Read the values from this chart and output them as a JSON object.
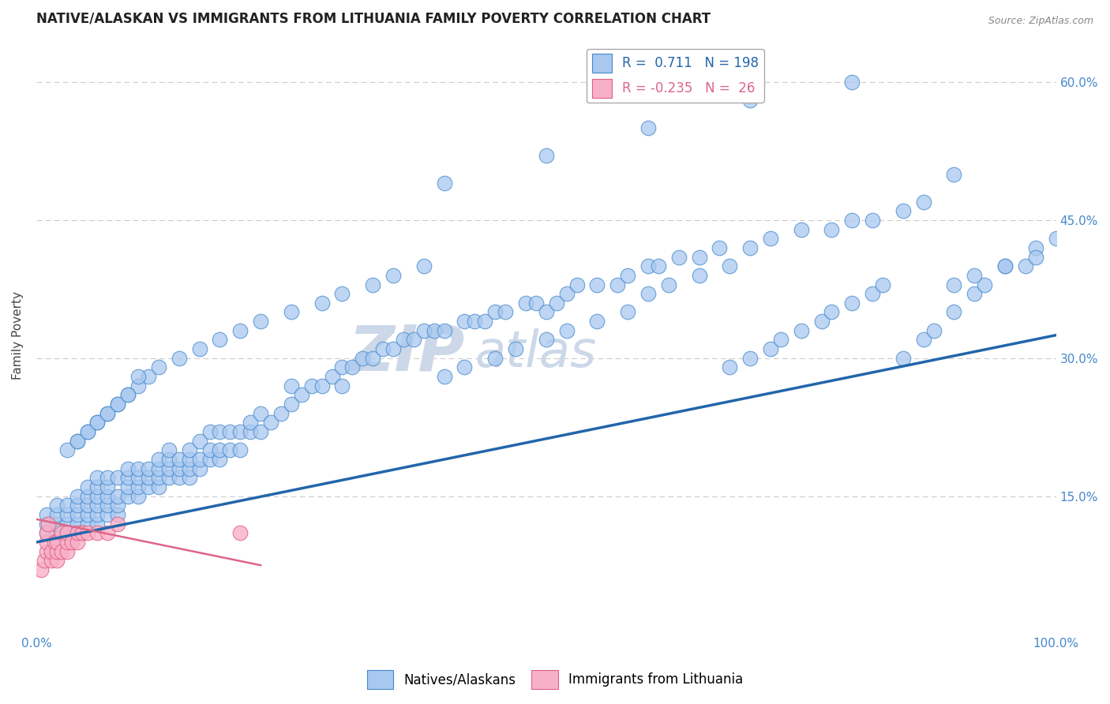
{
  "title": "NATIVE/ALASKAN VS IMMIGRANTS FROM LITHUANIA FAMILY POVERTY CORRELATION CHART",
  "source": "Source: ZipAtlas.com",
  "ylabel": "Family Poverty",
  "x_min": 0.0,
  "x_max": 1.0,
  "y_min": 0.0,
  "y_max": 0.65,
  "yticks": [
    0.0,
    0.15,
    0.3,
    0.45,
    0.6
  ],
  "ytick_labels": [
    "",
    "15.0%",
    "30.0%",
    "45.0%",
    "60.0%"
  ],
  "xtick_labels": [
    "0.0%",
    "100.0%"
  ],
  "blue_R": 0.711,
  "blue_N": 198,
  "pink_R": -0.235,
  "pink_N": 26,
  "blue_color": "#a8c8f0",
  "blue_edge_color": "#4488cc",
  "blue_line_color": "#2266aa",
  "pink_color": "#f8b0c8",
  "pink_edge_color": "#e06080",
  "pink_line_color": "#dd6688",
  "background_color": "#ffffff",
  "watermark_color": "#ccd8e8",
  "title_color": "#222222",
  "axis_label_color": "#444444",
  "tick_label_color": "#4488cc",
  "grid_color": "#cccccc",
  "legend_label1": "Natives/Alaskans",
  "legend_label2": "Immigrants from Lithuania",
  "blue_line_x": [
    0.0,
    1.0
  ],
  "blue_line_y": [
    0.1,
    0.325
  ],
  "pink_line_x": [
    0.0,
    0.22
  ],
  "pink_line_y": [
    0.125,
    0.075
  ],
  "blue_scatter_x": [
    0.01,
    0.01,
    0.01,
    0.02,
    0.02,
    0.02,
    0.02,
    0.02,
    0.03,
    0.03,
    0.03,
    0.03,
    0.03,
    0.04,
    0.04,
    0.04,
    0.04,
    0.04,
    0.05,
    0.05,
    0.05,
    0.05,
    0.05,
    0.06,
    0.06,
    0.06,
    0.06,
    0.06,
    0.06,
    0.07,
    0.07,
    0.07,
    0.07,
    0.07,
    0.08,
    0.08,
    0.08,
    0.08,
    0.09,
    0.09,
    0.09,
    0.09,
    0.1,
    0.1,
    0.1,
    0.1,
    0.11,
    0.11,
    0.11,
    0.12,
    0.12,
    0.12,
    0.12,
    0.13,
    0.13,
    0.13,
    0.13,
    0.14,
    0.14,
    0.14,
    0.15,
    0.15,
    0.15,
    0.15,
    0.16,
    0.16,
    0.16,
    0.17,
    0.17,
    0.17,
    0.18,
    0.18,
    0.18,
    0.19,
    0.19,
    0.2,
    0.2,
    0.21,
    0.21,
    0.22,
    0.22,
    0.23,
    0.24,
    0.25,
    0.25,
    0.26,
    0.27,
    0.28,
    0.29,
    0.3,
    0.3,
    0.31,
    0.32,
    0.33,
    0.34,
    0.35,
    0.36,
    0.37,
    0.38,
    0.39,
    0.4,
    0.42,
    0.43,
    0.44,
    0.45,
    0.46,
    0.48,
    0.49,
    0.5,
    0.51,
    0.52,
    0.53,
    0.55,
    0.57,
    0.58,
    0.6,
    0.61,
    0.63,
    0.65,
    0.67,
    0.68,
    0.7,
    0.72,
    0.73,
    0.75,
    0.77,
    0.78,
    0.8,
    0.82,
    0.83,
    0.85,
    0.87,
    0.88,
    0.9,
    0.92,
    0.93,
    0.95,
    0.97,
    0.98,
    1.0,
    0.04,
    0.05,
    0.06,
    0.07,
    0.08,
    0.09,
    0.1,
    0.11,
    0.12,
    0.14,
    0.16,
    0.18,
    0.2,
    0.22,
    0.25,
    0.28,
    0.3,
    0.33,
    0.35,
    0.38,
    0.4,
    0.42,
    0.45,
    0.47,
    0.5,
    0.52,
    0.55,
    0.58,
    0.6,
    0.62,
    0.65,
    0.68,
    0.7,
    0.72,
    0.75,
    0.78,
    0.8,
    0.82,
    0.85,
    0.87,
    0.9,
    0.92,
    0.95,
    0.98,
    0.4,
    0.5,
    0.6,
    0.7,
    0.8,
    0.9,
    0.03,
    0.04,
    0.05,
    0.06,
    0.07,
    0.08,
    0.09,
    0.1
  ],
  "blue_scatter_y": [
    0.12,
    0.13,
    0.11,
    0.1,
    0.11,
    0.12,
    0.13,
    0.14,
    0.1,
    0.11,
    0.12,
    0.13,
    0.14,
    0.11,
    0.12,
    0.13,
    0.14,
    0.15,
    0.12,
    0.13,
    0.14,
    0.15,
    0.16,
    0.12,
    0.13,
    0.14,
    0.15,
    0.16,
    0.17,
    0.13,
    0.14,
    0.15,
    0.16,
    0.17,
    0.13,
    0.14,
    0.15,
    0.17,
    0.15,
    0.16,
    0.17,
    0.18,
    0.15,
    0.16,
    0.17,
    0.18,
    0.16,
    0.17,
    0.18,
    0.16,
    0.17,
    0.18,
    0.19,
    0.17,
    0.18,
    0.19,
    0.2,
    0.17,
    0.18,
    0.19,
    0.17,
    0.18,
    0.19,
    0.2,
    0.18,
    0.19,
    0.21,
    0.19,
    0.2,
    0.22,
    0.19,
    0.2,
    0.22,
    0.2,
    0.22,
    0.2,
    0.22,
    0.22,
    0.23,
    0.22,
    0.24,
    0.23,
    0.24,
    0.25,
    0.27,
    0.26,
    0.27,
    0.27,
    0.28,
    0.27,
    0.29,
    0.29,
    0.3,
    0.3,
    0.31,
    0.31,
    0.32,
    0.32,
    0.33,
    0.33,
    0.33,
    0.34,
    0.34,
    0.34,
    0.35,
    0.35,
    0.36,
    0.36,
    0.35,
    0.36,
    0.37,
    0.38,
    0.38,
    0.38,
    0.39,
    0.4,
    0.4,
    0.41,
    0.41,
    0.42,
    0.29,
    0.3,
    0.31,
    0.32,
    0.33,
    0.34,
    0.35,
    0.36,
    0.37,
    0.38,
    0.3,
    0.32,
    0.33,
    0.35,
    0.37,
    0.38,
    0.4,
    0.4,
    0.42,
    0.43,
    0.21,
    0.22,
    0.23,
    0.24,
    0.25,
    0.26,
    0.27,
    0.28,
    0.29,
    0.3,
    0.31,
    0.32,
    0.33,
    0.34,
    0.35,
    0.36,
    0.37,
    0.38,
    0.39,
    0.4,
    0.28,
    0.29,
    0.3,
    0.31,
    0.32,
    0.33,
    0.34,
    0.35,
    0.37,
    0.38,
    0.39,
    0.4,
    0.42,
    0.43,
    0.44,
    0.44,
    0.45,
    0.45,
    0.46,
    0.47,
    0.38,
    0.39,
    0.4,
    0.41,
    0.49,
    0.52,
    0.55,
    0.58,
    0.6,
    0.5,
    0.2,
    0.21,
    0.22,
    0.23,
    0.24,
    0.25,
    0.26,
    0.28
  ],
  "pink_scatter_x": [
    0.005,
    0.008,
    0.01,
    0.01,
    0.01,
    0.012,
    0.015,
    0.015,
    0.018,
    0.02,
    0.02,
    0.02,
    0.025,
    0.025,
    0.03,
    0.03,
    0.03,
    0.035,
    0.04,
    0.04,
    0.045,
    0.05,
    0.06,
    0.07,
    0.08,
    0.2
  ],
  "pink_scatter_y": [
    0.07,
    0.08,
    0.09,
    0.1,
    0.11,
    0.12,
    0.08,
    0.09,
    0.1,
    0.08,
    0.09,
    0.1,
    0.09,
    0.11,
    0.09,
    0.1,
    0.11,
    0.1,
    0.1,
    0.11,
    0.11,
    0.11,
    0.11,
    0.11,
    0.12,
    0.11
  ]
}
